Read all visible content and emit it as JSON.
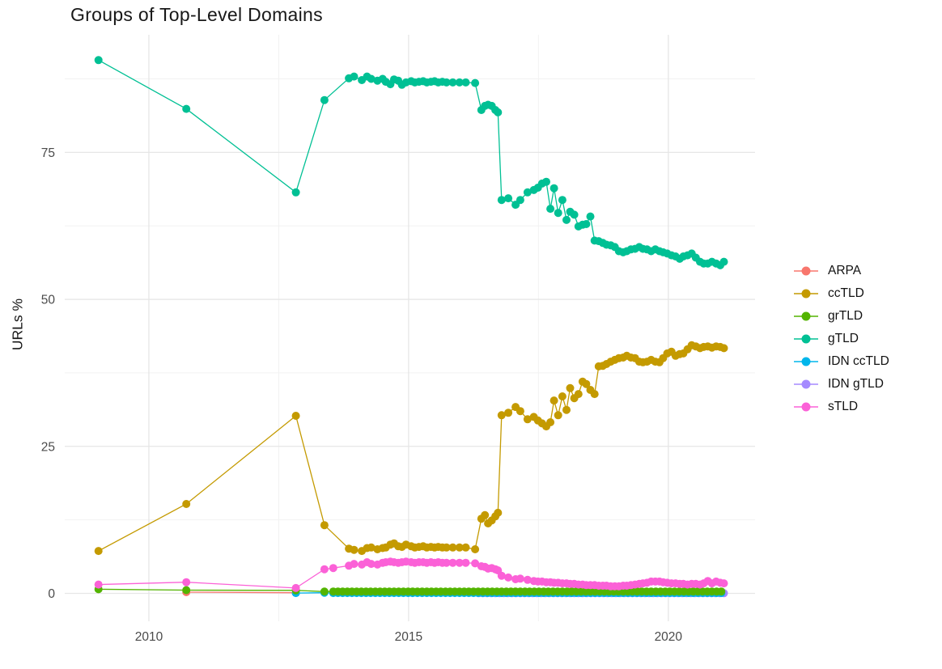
{
  "title": "Groups of Top-Level Domains",
  "chart_data": {
    "type": "line",
    "title": "Groups of Top-Level Domains",
    "xlabel": "",
    "ylabel": "URLs %",
    "xlim": [
      2008.38,
      2021.67
    ],
    "ylim": [
      -4.75,
      95
    ],
    "x_ticks_major": [
      {
        "value": 2010,
        "label": "2010"
      },
      {
        "value": 2015,
        "label": "2015"
      },
      {
        "value": 2020,
        "label": "2020"
      }
    ],
    "x_ticks_minor": [
      2012.5,
      2017.5
    ],
    "y_ticks_major": [
      {
        "value": 0,
        "label": "0"
      },
      {
        "value": 25,
        "label": "25"
      },
      {
        "value": 50,
        "label": "50"
      },
      {
        "value": 75,
        "label": "75"
      }
    ],
    "y_ticks_minor": [
      12.5,
      37.5,
      62.5,
      87.5
    ],
    "legend_position": "right",
    "grid": "on",
    "grid_major_color": "#e6e6e6",
    "grid_minor_color": "#f2f2f2",
    "tick_label_color": "#4a4a4a",
    "series": [
      {
        "name": "ARPA",
        "color": "#F8766D",
        "points": [
          [
            2010.72,
            0.2
          ],
          [
            2012.83,
            0.1
          ]
        ]
      },
      {
        "name": "ccTLD",
        "color": "#C49A00",
        "points": [
          [
            2009.03,
            7.2
          ],
          [
            2010.72,
            15.2
          ],
          [
            2012.83,
            30.2
          ],
          [
            2013.38,
            11.6
          ],
          [
            2013.85,
            7.6
          ],
          [
            2013.95,
            7.4
          ],
          [
            2014.1,
            7.2
          ],
          [
            2014.2,
            7.7
          ],
          [
            2014.28,
            7.8
          ],
          [
            2014.4,
            7.5
          ],
          [
            2014.5,
            7.7
          ],
          [
            2014.56,
            7.8
          ],
          [
            2014.65,
            8.3
          ],
          [
            2014.72,
            8.5
          ],
          [
            2014.8,
            8
          ],
          [
            2014.87,
            7.9
          ],
          [
            2014.95,
            8.3
          ],
          [
            2015.05,
            8
          ],
          [
            2015.12,
            7.8
          ],
          [
            2015.2,
            7.9
          ],
          [
            2015.28,
            8
          ],
          [
            2015.35,
            7.8
          ],
          [
            2015.43,
            7.9
          ],
          [
            2015.5,
            7.8
          ],
          [
            2015.57,
            7.9
          ],
          [
            2015.65,
            7.8
          ],
          [
            2015.73,
            7.8
          ],
          [
            2015.85,
            7.8
          ],
          [
            2015.98,
            7.8
          ],
          [
            2016.1,
            7.8
          ],
          [
            2016.28,
            7.5
          ],
          [
            2016.4,
            12.7
          ],
          [
            2016.47,
            13.3
          ],
          [
            2016.53,
            11.9
          ],
          [
            2016.6,
            12.4
          ],
          [
            2016.67,
            13.1
          ],
          [
            2016.72,
            13.7
          ],
          [
            2016.79,
            30.3
          ],
          [
            2016.92,
            30.7
          ],
          [
            2017.06,
            31.7
          ],
          [
            2017.15,
            31
          ],
          [
            2017.29,
            29.6
          ],
          [
            2017.41,
            30
          ],
          [
            2017.49,
            29.4
          ],
          [
            2017.57,
            28.9
          ],
          [
            2017.65,
            28.4
          ],
          [
            2017.73,
            29.1
          ],
          [
            2017.8,
            32.8
          ],
          [
            2017.88,
            30.3
          ],
          [
            2017.96,
            33.5
          ],
          [
            2018.04,
            31.2
          ],
          [
            2018.11,
            34.9
          ],
          [
            2018.19,
            33.2
          ],
          [
            2018.27,
            33.9
          ],
          [
            2018.35,
            36
          ],
          [
            2018.42,
            35.6
          ],
          [
            2018.5,
            34.6
          ],
          [
            2018.58,
            33.9
          ],
          [
            2018.66,
            38.6
          ],
          [
            2018.74,
            38.7
          ],
          [
            2018.81,
            39
          ],
          [
            2018.89,
            39.4
          ],
          [
            2018.97,
            39.7
          ],
          [
            2019.05,
            40
          ],
          [
            2019.13,
            40.1
          ],
          [
            2019.2,
            40.4
          ],
          [
            2019.28,
            40.1
          ],
          [
            2019.36,
            40
          ],
          [
            2019.44,
            39.4
          ],
          [
            2019.51,
            39.3
          ],
          [
            2019.59,
            39.4
          ],
          [
            2019.67,
            39.7
          ],
          [
            2019.75,
            39.4
          ],
          [
            2019.83,
            39.3
          ],
          [
            2019.9,
            40
          ],
          [
            2019.98,
            40.8
          ],
          [
            2020.06,
            41.1
          ],
          [
            2020.14,
            40.4
          ],
          [
            2020.22,
            40.7
          ],
          [
            2020.29,
            40.8
          ],
          [
            2020.37,
            41.5
          ],
          [
            2020.45,
            42.2
          ],
          [
            2020.53,
            42
          ],
          [
            2020.61,
            41.7
          ],
          [
            2020.68,
            41.9
          ],
          [
            2020.76,
            42
          ],
          [
            2020.84,
            41.8
          ],
          [
            2020.92,
            42
          ],
          [
            2021,
            41.9
          ],
          [
            2021.07,
            41.7
          ]
        ]
      },
      {
        "name": "grTLD",
        "color": "#53B400",
        "points": [
          [
            2009.03,
            0.7
          ],
          [
            2010.72,
            0.55
          ],
          [
            2012.83,
            0.5
          ],
          [
            2013.38,
            0.3
          ]
        ],
        "span": {
          "start": 2013.55,
          "end": 2021.07,
          "step": 0.09,
          "value": 0.32
        }
      },
      {
        "name": "gTLD",
        "color": "#00C094",
        "points": [
          [
            2009.03,
            90.7
          ],
          [
            2010.72,
            82.4
          ],
          [
            2012.83,
            68.2
          ],
          [
            2013.38,
            83.9
          ],
          [
            2013.85,
            87.6
          ],
          [
            2013.95,
            87.9
          ],
          [
            2014.1,
            87.3
          ],
          [
            2014.2,
            87.9
          ],
          [
            2014.28,
            87.5
          ],
          [
            2014.4,
            87.2
          ],
          [
            2014.5,
            87.5
          ],
          [
            2014.56,
            87
          ],
          [
            2014.65,
            86.6
          ],
          [
            2014.72,
            87.4
          ],
          [
            2014.8,
            87.2
          ],
          [
            2014.87,
            86.5
          ],
          [
            2014.95,
            86.9
          ],
          [
            2015.05,
            87.1
          ],
          [
            2015.12,
            86.9
          ],
          [
            2015.2,
            87
          ],
          [
            2015.28,
            87.1
          ],
          [
            2015.35,
            86.9
          ],
          [
            2015.43,
            87
          ],
          [
            2015.5,
            87.1
          ],
          [
            2015.57,
            86.9
          ],
          [
            2015.65,
            87
          ],
          [
            2015.73,
            86.9
          ],
          [
            2015.85,
            86.9
          ],
          [
            2015.98,
            86.9
          ],
          [
            2016.1,
            86.9
          ],
          [
            2016.28,
            86.8
          ],
          [
            2016.4,
            82.2
          ],
          [
            2016.47,
            82.9
          ],
          [
            2016.53,
            83.1
          ],
          [
            2016.6,
            82.9
          ],
          [
            2016.67,
            82.2
          ],
          [
            2016.72,
            81.8
          ],
          [
            2016.79,
            66.9
          ],
          [
            2016.92,
            67.2
          ],
          [
            2017.06,
            66.1
          ],
          [
            2017.15,
            66.9
          ],
          [
            2017.29,
            68.2
          ],
          [
            2017.41,
            68.6
          ],
          [
            2017.49,
            69
          ],
          [
            2017.57,
            69.7
          ],
          [
            2017.65,
            70
          ],
          [
            2017.73,
            65.4
          ],
          [
            2017.8,
            68.9
          ],
          [
            2017.88,
            64.7
          ],
          [
            2017.96,
            66.9
          ],
          [
            2018.04,
            63.5
          ],
          [
            2018.11,
            64.9
          ],
          [
            2018.19,
            64.4
          ],
          [
            2018.27,
            62.4
          ],
          [
            2018.35,
            62.7
          ],
          [
            2018.42,
            62.8
          ],
          [
            2018.5,
            64.1
          ],
          [
            2018.58,
            60
          ],
          [
            2018.66,
            59.9
          ],
          [
            2018.74,
            59.6
          ],
          [
            2018.81,
            59.3
          ],
          [
            2018.89,
            59.2
          ],
          [
            2018.97,
            58.9
          ],
          [
            2019.05,
            58.2
          ],
          [
            2019.13,
            58
          ],
          [
            2019.2,
            58.2
          ],
          [
            2019.28,
            58.5
          ],
          [
            2019.36,
            58.6
          ],
          [
            2019.44,
            58.9
          ],
          [
            2019.51,
            58.6
          ],
          [
            2019.59,
            58.5
          ],
          [
            2019.67,
            58.2
          ],
          [
            2019.75,
            58.5
          ],
          [
            2019.83,
            58.2
          ],
          [
            2019.9,
            58
          ],
          [
            2019.98,
            57.8
          ],
          [
            2020.06,
            57.5
          ],
          [
            2020.14,
            57.3
          ],
          [
            2020.22,
            56.9
          ],
          [
            2020.29,
            57.3
          ],
          [
            2020.37,
            57.5
          ],
          [
            2020.45,
            57.8
          ],
          [
            2020.53,
            57.1
          ],
          [
            2020.61,
            56.4
          ],
          [
            2020.68,
            56.1
          ],
          [
            2020.76,
            56.1
          ],
          [
            2020.84,
            56.4
          ],
          [
            2020.92,
            56.1
          ],
          [
            2021,
            55.8
          ],
          [
            2021.07,
            56.4
          ]
        ]
      },
      {
        "name": "IDN ccTLD",
        "color": "#00B6EB",
        "points": [
          [
            2012.83,
            0.05
          ],
          [
            2013.38,
            0.1
          ]
        ],
        "span": {
          "start": 2013.55,
          "end": 2021.07,
          "step": 0.09,
          "value": 0.05
        }
      },
      {
        "name": "IDN gTLD",
        "color": "#A58AFF",
        "points": [],
        "span": {
          "start": 2016.35,
          "end": 2021.07,
          "step": 0.08,
          "value": 0.02
        }
      },
      {
        "name": "sTLD",
        "color": "#FB61D7",
        "points": [
          [
            2009.03,
            1.5
          ],
          [
            2010.72,
            1.9
          ],
          [
            2012.83,
            0.9
          ],
          [
            2013.38,
            4.1
          ],
          [
            2013.55,
            4.3
          ],
          [
            2013.85,
            4.7
          ],
          [
            2013.95,
            5
          ],
          [
            2014.1,
            4.9
          ],
          [
            2014.2,
            5.3
          ],
          [
            2014.28,
            5
          ],
          [
            2014.4,
            4.9
          ],
          [
            2014.5,
            5.2
          ],
          [
            2014.56,
            5.3
          ],
          [
            2014.65,
            5.4
          ],
          [
            2014.72,
            5.3
          ],
          [
            2014.8,
            5.2
          ],
          [
            2014.87,
            5.3
          ],
          [
            2014.95,
            5.4
          ],
          [
            2015.05,
            5.3
          ],
          [
            2015.12,
            5.2
          ],
          [
            2015.2,
            5.3
          ],
          [
            2015.28,
            5.3
          ],
          [
            2015.35,
            5.2
          ],
          [
            2015.43,
            5.3
          ],
          [
            2015.5,
            5.2
          ],
          [
            2015.57,
            5.3
          ],
          [
            2015.65,
            5.2
          ],
          [
            2015.73,
            5.2
          ],
          [
            2015.85,
            5.2
          ],
          [
            2015.98,
            5.2
          ],
          [
            2016.1,
            5.2
          ],
          [
            2016.28,
            5.1
          ],
          [
            2016.4,
            4.6
          ],
          [
            2016.47,
            4.5
          ],
          [
            2016.53,
            4.2
          ],
          [
            2016.6,
            4.3
          ],
          [
            2016.67,
            4.1
          ],
          [
            2016.72,
            3.9
          ],
          [
            2016.79,
            3
          ],
          [
            2016.92,
            2.7
          ],
          [
            2017.06,
            2.4
          ],
          [
            2017.15,
            2.5
          ],
          [
            2017.29,
            2.3
          ],
          [
            2017.41,
            2.1
          ],
          [
            2017.49,
            2
          ],
          [
            2017.57,
            2
          ],
          [
            2017.65,
            1.9
          ],
          [
            2017.73,
            1.9
          ],
          [
            2017.8,
            1.8
          ],
          [
            2017.88,
            1.8
          ],
          [
            2017.96,
            1.7
          ],
          [
            2018.04,
            1.7
          ],
          [
            2018.11,
            1.6
          ],
          [
            2018.19,
            1.6
          ],
          [
            2018.27,
            1.5
          ],
          [
            2018.35,
            1.5
          ],
          [
            2018.42,
            1.4
          ],
          [
            2018.5,
            1.4
          ],
          [
            2018.58,
            1.4
          ],
          [
            2018.66,
            1.3
          ],
          [
            2018.74,
            1.3
          ],
          [
            2018.81,
            1.3
          ],
          [
            2018.89,
            1.2
          ],
          [
            2018.97,
            1.2
          ],
          [
            2019.05,
            1.2
          ],
          [
            2019.13,
            1.3
          ],
          [
            2019.2,
            1.3
          ],
          [
            2019.28,
            1.4
          ],
          [
            2019.36,
            1.5
          ],
          [
            2019.44,
            1.6
          ],
          [
            2019.51,
            1.7
          ],
          [
            2019.59,
            1.8
          ],
          [
            2019.67,
            2
          ],
          [
            2019.75,
            2
          ],
          [
            2019.83,
            2
          ],
          [
            2019.9,
            1.9
          ],
          [
            2019.98,
            1.8
          ],
          [
            2020.06,
            1.7
          ],
          [
            2020.14,
            1.7
          ],
          [
            2020.22,
            1.6
          ],
          [
            2020.29,
            1.6
          ],
          [
            2020.37,
            1.5
          ],
          [
            2020.45,
            1.6
          ],
          [
            2020.53,
            1.6
          ],
          [
            2020.61,
            1.5
          ],
          [
            2020.68,
            1.7
          ],
          [
            2020.76,
            2.1
          ],
          [
            2020.84,
            1.7
          ],
          [
            2020.92,
            2
          ],
          [
            2021,
            1.8
          ],
          [
            2021.07,
            1.7
          ]
        ]
      }
    ]
  }
}
